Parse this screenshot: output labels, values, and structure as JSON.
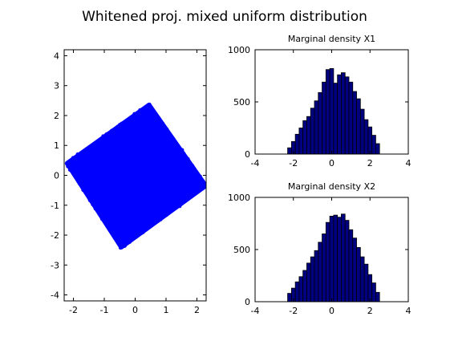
{
  "figure_title": "Whitened proj. mixed uniform distribution",
  "chart_data": [
    {
      "type": "scatter",
      "name": "scatter-plot",
      "title": "",
      "xlabel": "",
      "ylabel": "",
      "xlim": [
        -2.3,
        2.3
      ],
      "ylim": [
        -4.2,
        4.2
      ],
      "xticks": [
        -2,
        -1,
        0,
        1,
        2
      ],
      "yticks": [
        -4,
        -3,
        -2,
        -1,
        0,
        1,
        2,
        3,
        4
      ],
      "marker_color": "#0000ff",
      "region_corners": [
        [
          -2.2,
          0.4
        ],
        [
          0.45,
          2.35
        ],
        [
          2.28,
          -0.35
        ],
        [
          -0.45,
          -2.4
        ]
      ]
    },
    {
      "type": "bar",
      "name": "marginal-x1",
      "title": "Marginal density X1",
      "xlim": [
        -4,
        4
      ],
      "ylim": [
        0,
        1000
      ],
      "xticks": [
        -4,
        -2,
        0,
        2,
        4
      ],
      "yticks": [
        0,
        500,
        1000
      ],
      "bar_color": "#000080",
      "bin_start": -2.3,
      "bin_width": 0.2,
      "values": [
        60,
        120,
        190,
        250,
        320,
        360,
        440,
        510,
        590,
        690,
        810,
        820,
        680,
        760,
        780,
        740,
        690,
        600,
        530,
        430,
        330,
        260,
        180,
        100
      ]
    },
    {
      "type": "bar",
      "name": "marginal-x2",
      "title": "Marginal density X2",
      "xlim": [
        -4,
        4
      ],
      "ylim": [
        0,
        1000
      ],
      "xticks": [
        -4,
        -2,
        0,
        2,
        4
      ],
      "yticks": [
        0,
        500,
        1000
      ],
      "bar_color": "#000080",
      "bin_start": -2.3,
      "bin_width": 0.2,
      "values": [
        80,
        130,
        190,
        240,
        300,
        370,
        430,
        490,
        570,
        650,
        760,
        820,
        830,
        810,
        840,
        780,
        690,
        610,
        520,
        430,
        360,
        260,
        180,
        90
      ]
    }
  ]
}
